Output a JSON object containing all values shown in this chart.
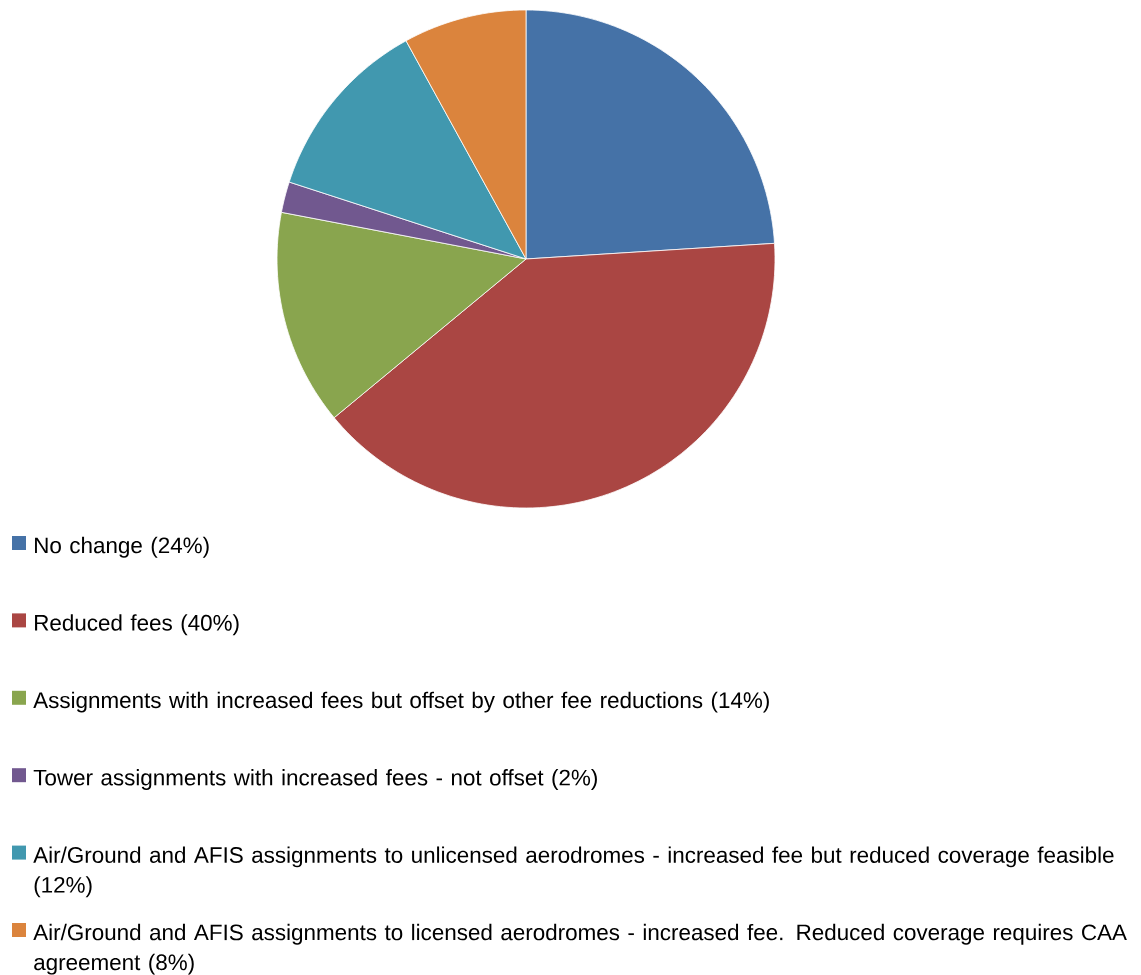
{
  "chart_data": {
    "type": "pie",
    "categories": [
      "No change (24%)",
      "Reduced fees (40%)",
      "Assignments with increased fees but offset by other fee reductions  (14%)",
      "Tower assignments with increased fees - not offset (2%)",
      "Air/Ground and AFIS assignments to unlicensed aerodromes  - increased fee but reduced coverage feasible  (12%)",
      "Air/Ground and AFIS assignments to licensed aerodromes - increased fee. Reduced coverage requires CAA agreement (8%)"
    ],
    "values": [
      24,
      40,
      14,
      2,
      12,
      8
    ],
    "colors": [
      "#4572a7",
      "#aa4643",
      "#89a54e",
      "#71588f",
      "#4198af",
      "#db843d"
    ],
    "legend": "bottom"
  }
}
